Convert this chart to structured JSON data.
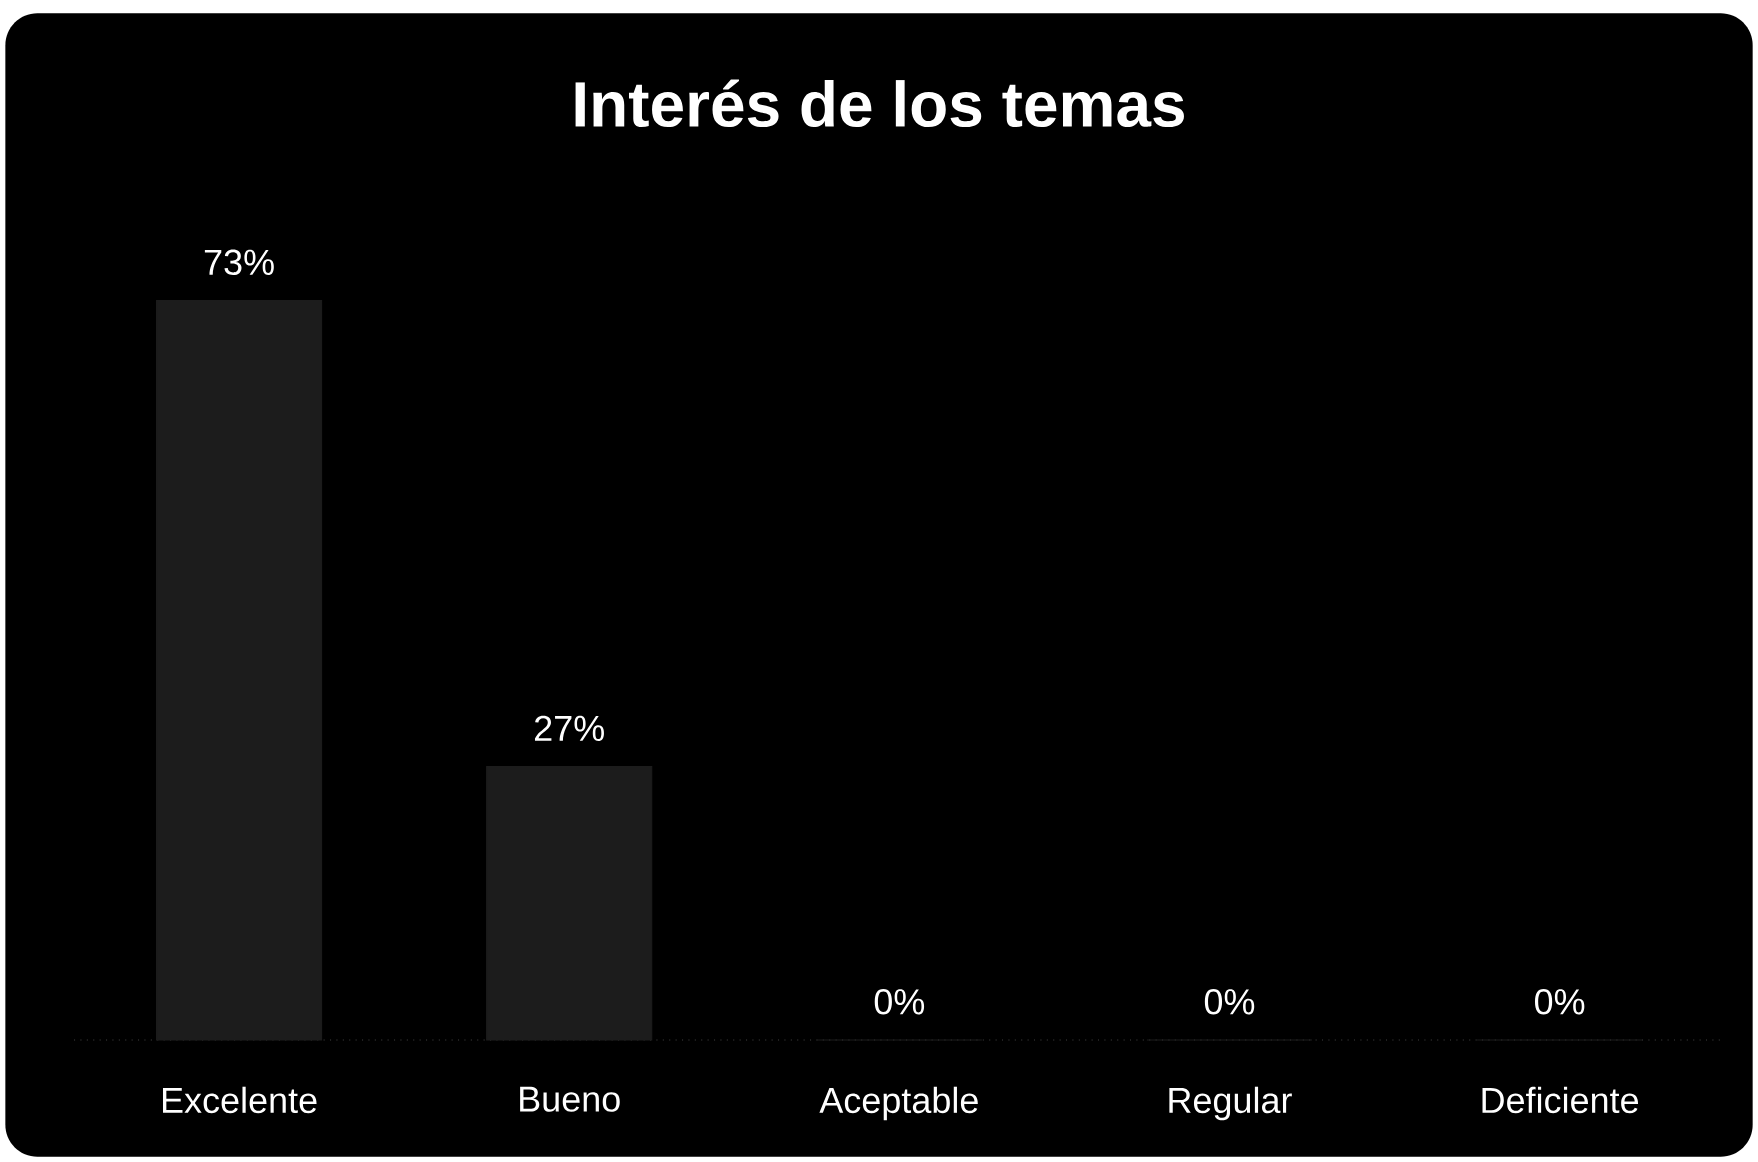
{
  "chart_data": {
    "type": "bar",
    "title": "Interés de los temas",
    "categories": [
      "Excelente",
      "Bueno",
      "Aceptable",
      "Regular",
      "Deficiente"
    ],
    "values": [
      73,
      27,
      0,
      0,
      0
    ],
    "value_labels": [
      "73%",
      "27%",
      "0%",
      "0%",
      "0%"
    ],
    "color": "#1c1c1c"
  }
}
